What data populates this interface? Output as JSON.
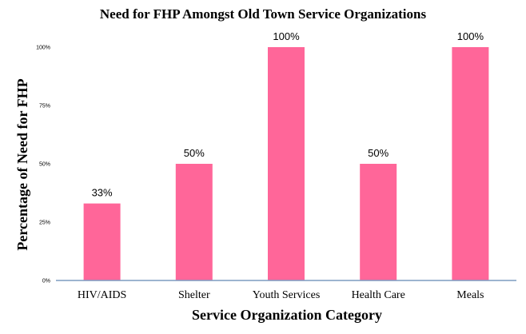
{
  "chart_data": {
    "type": "bar",
    "title": "Need for FHP Amongst Old Town Service Organizations",
    "xlabel": "Service Organization Category",
    "ylabel": "Percentage of Need for FHP",
    "categories": [
      "HIV/AIDS",
      "Shelter",
      "Youth Services",
      "Health Care",
      "Meals"
    ],
    "values": [
      33,
      50,
      100,
      50,
      100
    ],
    "data_labels": [
      "33%",
      "50%",
      "100%",
      "50%",
      "100%"
    ],
    "y_ticks": [
      0,
      25,
      50,
      75,
      100
    ],
    "y_tick_labels": [
      "0%",
      "25%",
      "50%",
      "75%",
      "100%"
    ],
    "ylim": [
      0,
      100
    ],
    "grid": false,
    "legend": "none",
    "bar_color": "#ff6699",
    "axis_color": "#7d9bc1"
  }
}
